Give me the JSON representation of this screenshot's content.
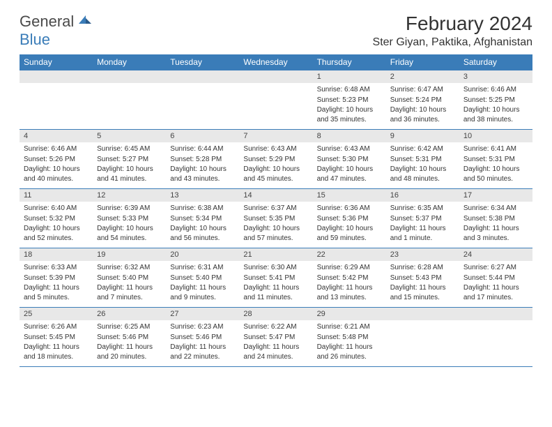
{
  "logo": {
    "text1": "General",
    "text2": "Blue",
    "color_gray": "#6a6a6a",
    "color_blue": "#3a7cb8"
  },
  "title": "February 2024",
  "location": "Ster Giyan, Paktika, Afghanistan",
  "header_bg": "#3a7cb8",
  "header_fg": "#ffffff",
  "daynum_bg": "#e8e8e8",
  "border_color": "#3a7cb8",
  "weekdays": [
    "Sunday",
    "Monday",
    "Tuesday",
    "Wednesday",
    "Thursday",
    "Friday",
    "Saturday"
  ],
  "weeks": [
    [
      null,
      null,
      null,
      null,
      {
        "n": "1",
        "sunrise": "Sunrise: 6:48 AM",
        "sunset": "Sunset: 5:23 PM",
        "daylight": "Daylight: 10 hours and 35 minutes."
      },
      {
        "n": "2",
        "sunrise": "Sunrise: 6:47 AM",
        "sunset": "Sunset: 5:24 PM",
        "daylight": "Daylight: 10 hours and 36 minutes."
      },
      {
        "n": "3",
        "sunrise": "Sunrise: 6:46 AM",
        "sunset": "Sunset: 5:25 PM",
        "daylight": "Daylight: 10 hours and 38 minutes."
      }
    ],
    [
      {
        "n": "4",
        "sunrise": "Sunrise: 6:46 AM",
        "sunset": "Sunset: 5:26 PM",
        "daylight": "Daylight: 10 hours and 40 minutes."
      },
      {
        "n": "5",
        "sunrise": "Sunrise: 6:45 AM",
        "sunset": "Sunset: 5:27 PM",
        "daylight": "Daylight: 10 hours and 41 minutes."
      },
      {
        "n": "6",
        "sunrise": "Sunrise: 6:44 AM",
        "sunset": "Sunset: 5:28 PM",
        "daylight": "Daylight: 10 hours and 43 minutes."
      },
      {
        "n": "7",
        "sunrise": "Sunrise: 6:43 AM",
        "sunset": "Sunset: 5:29 PM",
        "daylight": "Daylight: 10 hours and 45 minutes."
      },
      {
        "n": "8",
        "sunrise": "Sunrise: 6:43 AM",
        "sunset": "Sunset: 5:30 PM",
        "daylight": "Daylight: 10 hours and 47 minutes."
      },
      {
        "n": "9",
        "sunrise": "Sunrise: 6:42 AM",
        "sunset": "Sunset: 5:31 PM",
        "daylight": "Daylight: 10 hours and 48 minutes."
      },
      {
        "n": "10",
        "sunrise": "Sunrise: 6:41 AM",
        "sunset": "Sunset: 5:31 PM",
        "daylight": "Daylight: 10 hours and 50 minutes."
      }
    ],
    [
      {
        "n": "11",
        "sunrise": "Sunrise: 6:40 AM",
        "sunset": "Sunset: 5:32 PM",
        "daylight": "Daylight: 10 hours and 52 minutes."
      },
      {
        "n": "12",
        "sunrise": "Sunrise: 6:39 AM",
        "sunset": "Sunset: 5:33 PM",
        "daylight": "Daylight: 10 hours and 54 minutes."
      },
      {
        "n": "13",
        "sunrise": "Sunrise: 6:38 AM",
        "sunset": "Sunset: 5:34 PM",
        "daylight": "Daylight: 10 hours and 56 minutes."
      },
      {
        "n": "14",
        "sunrise": "Sunrise: 6:37 AM",
        "sunset": "Sunset: 5:35 PM",
        "daylight": "Daylight: 10 hours and 57 minutes."
      },
      {
        "n": "15",
        "sunrise": "Sunrise: 6:36 AM",
        "sunset": "Sunset: 5:36 PM",
        "daylight": "Daylight: 10 hours and 59 minutes."
      },
      {
        "n": "16",
        "sunrise": "Sunrise: 6:35 AM",
        "sunset": "Sunset: 5:37 PM",
        "daylight": "Daylight: 11 hours and 1 minute."
      },
      {
        "n": "17",
        "sunrise": "Sunrise: 6:34 AM",
        "sunset": "Sunset: 5:38 PM",
        "daylight": "Daylight: 11 hours and 3 minutes."
      }
    ],
    [
      {
        "n": "18",
        "sunrise": "Sunrise: 6:33 AM",
        "sunset": "Sunset: 5:39 PM",
        "daylight": "Daylight: 11 hours and 5 minutes."
      },
      {
        "n": "19",
        "sunrise": "Sunrise: 6:32 AM",
        "sunset": "Sunset: 5:40 PM",
        "daylight": "Daylight: 11 hours and 7 minutes."
      },
      {
        "n": "20",
        "sunrise": "Sunrise: 6:31 AM",
        "sunset": "Sunset: 5:40 PM",
        "daylight": "Daylight: 11 hours and 9 minutes."
      },
      {
        "n": "21",
        "sunrise": "Sunrise: 6:30 AM",
        "sunset": "Sunset: 5:41 PM",
        "daylight": "Daylight: 11 hours and 11 minutes."
      },
      {
        "n": "22",
        "sunrise": "Sunrise: 6:29 AM",
        "sunset": "Sunset: 5:42 PM",
        "daylight": "Daylight: 11 hours and 13 minutes."
      },
      {
        "n": "23",
        "sunrise": "Sunrise: 6:28 AM",
        "sunset": "Sunset: 5:43 PM",
        "daylight": "Daylight: 11 hours and 15 minutes."
      },
      {
        "n": "24",
        "sunrise": "Sunrise: 6:27 AM",
        "sunset": "Sunset: 5:44 PM",
        "daylight": "Daylight: 11 hours and 17 minutes."
      }
    ],
    [
      {
        "n": "25",
        "sunrise": "Sunrise: 6:26 AM",
        "sunset": "Sunset: 5:45 PM",
        "daylight": "Daylight: 11 hours and 18 minutes."
      },
      {
        "n": "26",
        "sunrise": "Sunrise: 6:25 AM",
        "sunset": "Sunset: 5:46 PM",
        "daylight": "Daylight: 11 hours and 20 minutes."
      },
      {
        "n": "27",
        "sunrise": "Sunrise: 6:23 AM",
        "sunset": "Sunset: 5:46 PM",
        "daylight": "Daylight: 11 hours and 22 minutes."
      },
      {
        "n": "28",
        "sunrise": "Sunrise: 6:22 AM",
        "sunset": "Sunset: 5:47 PM",
        "daylight": "Daylight: 11 hours and 24 minutes."
      },
      {
        "n": "29",
        "sunrise": "Sunrise: 6:21 AM",
        "sunset": "Sunset: 5:48 PM",
        "daylight": "Daylight: 11 hours and 26 minutes."
      },
      null,
      null
    ]
  ]
}
